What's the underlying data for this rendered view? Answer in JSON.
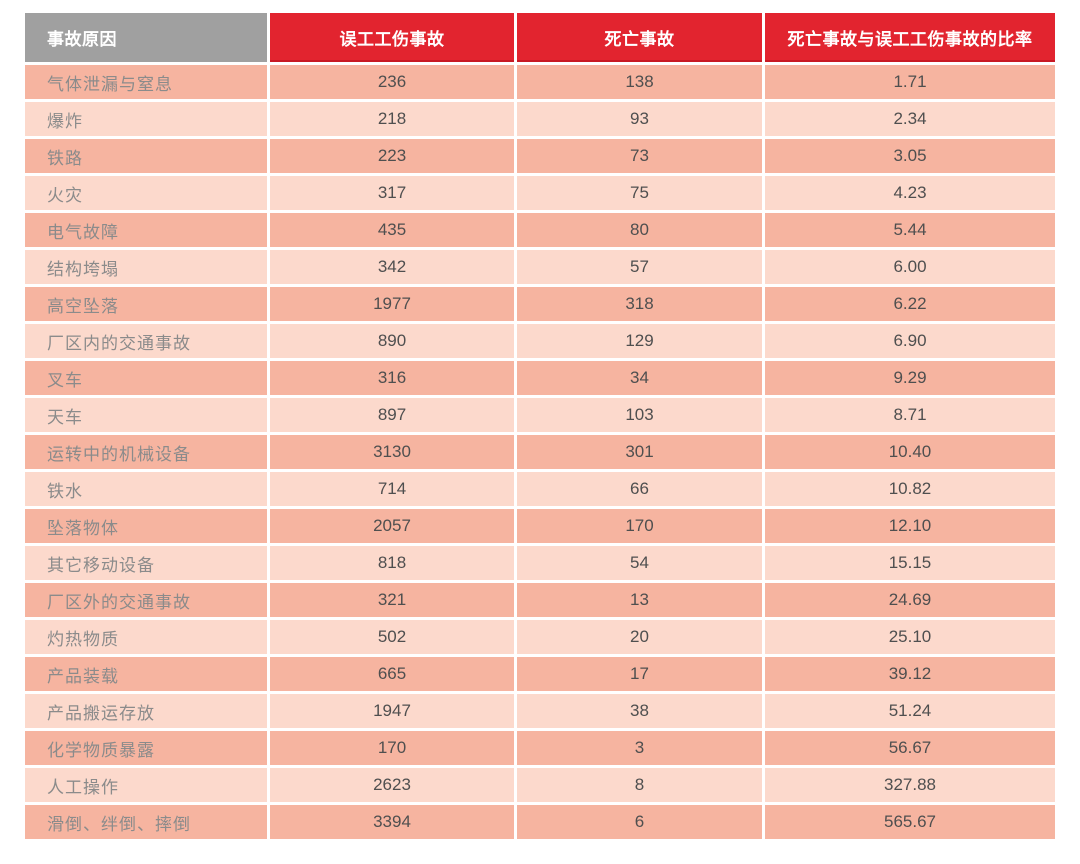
{
  "colors": {
    "header-gray": "#a0a0a0",
    "header-red": "#e2242f",
    "row-odd": "#f6b4a0",
    "row-even": "#fcd9cc",
    "label-text": "#8b8b8b",
    "value-text": "#4f4f4f",
    "header-text": "#ffffff",
    "page-background": "#ffffff"
  },
  "table": {
    "headers": [
      {
        "label": "事故原因"
      },
      {
        "label": "误工工伤事故"
      },
      {
        "label": "死亡事故"
      },
      {
        "label": "死亡事故与误工工伤事故的比率"
      }
    ],
    "rows": [
      [
        "气体泄漏与窒息",
        "236",
        "138",
        "1.71"
      ],
      [
        "爆炸",
        "218",
        "93",
        "2.34"
      ],
      [
        "铁路",
        "223",
        "73",
        "3.05"
      ],
      [
        "火灾",
        "317",
        "75",
        "4.23"
      ],
      [
        "电气故障",
        "435",
        "80",
        "5.44"
      ],
      [
        "结构垮塌",
        "342",
        "57",
        "6.00"
      ],
      [
        "高空坠落",
        "1977",
        "318",
        "6.22"
      ],
      [
        "厂区内的交通事故",
        "890",
        "129",
        "6.90"
      ],
      [
        "叉车",
        "316",
        "34",
        "9.29"
      ],
      [
        "天车",
        "897",
        "103",
        "8.71"
      ],
      [
        "运转中的机械设备",
        "3130",
        "301",
        "10.40"
      ],
      [
        "铁水",
        "714",
        "66",
        "10.82"
      ],
      [
        "坠落物体",
        "2057",
        "170",
        "12.10"
      ],
      [
        "其它移动设备",
        "818",
        "54",
        "15.15"
      ],
      [
        "厂区外的交通事故",
        "321",
        "13",
        "24.69"
      ],
      [
        "灼热物质",
        "502",
        "20",
        "25.10"
      ],
      [
        "产品装载",
        "665",
        "17",
        "39.12"
      ],
      [
        "产品搬运存放",
        "1947",
        "38",
        "51.24"
      ],
      [
        "化学物质暴露",
        "170",
        "3",
        "56.67"
      ],
      [
        "人工操作",
        "2623",
        "8",
        "327.88"
      ],
      [
        "滑倒、绊倒、摔倒",
        "3394",
        "6",
        "565.67"
      ]
    ]
  },
  "chart_data": {
    "type": "table",
    "columns": [
      "事故原因",
      "误工工伤事故",
      "死亡事故",
      "死亡事故与误工工伤事故的比率"
    ],
    "rows": [
      {
        "cause": "气体泄漏与窒息",
        "lost_time_injuries": 236,
        "fatalities": 138,
        "ratio": 1.71
      },
      {
        "cause": "爆炸",
        "lost_time_injuries": 218,
        "fatalities": 93,
        "ratio": 2.34
      },
      {
        "cause": "铁路",
        "lost_time_injuries": 223,
        "fatalities": 73,
        "ratio": 3.05
      },
      {
        "cause": "火灾",
        "lost_time_injuries": 317,
        "fatalities": 75,
        "ratio": 4.23
      },
      {
        "cause": "电气故障",
        "lost_time_injuries": 435,
        "fatalities": 80,
        "ratio": 5.44
      },
      {
        "cause": "结构垮塌",
        "lost_time_injuries": 342,
        "fatalities": 57,
        "ratio": 6.0
      },
      {
        "cause": "高空坠落",
        "lost_time_injuries": 1977,
        "fatalities": 318,
        "ratio": 6.22
      },
      {
        "cause": "厂区内的交通事故",
        "lost_time_injuries": 890,
        "fatalities": 129,
        "ratio": 6.9
      },
      {
        "cause": "叉车",
        "lost_time_injuries": 316,
        "fatalities": 34,
        "ratio": 9.29
      },
      {
        "cause": "天车",
        "lost_time_injuries": 897,
        "fatalities": 103,
        "ratio": 8.71
      },
      {
        "cause": "运转中的机械设备",
        "lost_time_injuries": 3130,
        "fatalities": 301,
        "ratio": 10.4
      },
      {
        "cause": "铁水",
        "lost_time_injuries": 714,
        "fatalities": 66,
        "ratio": 10.82
      },
      {
        "cause": "坠落物体",
        "lost_time_injuries": 2057,
        "fatalities": 170,
        "ratio": 12.1
      },
      {
        "cause": "其它移动设备",
        "lost_time_injuries": 818,
        "fatalities": 54,
        "ratio": 15.15
      },
      {
        "cause": "厂区外的交通事故",
        "lost_time_injuries": 321,
        "fatalities": 13,
        "ratio": 24.69
      },
      {
        "cause": "灼热物质",
        "lost_time_injuries": 502,
        "fatalities": 20,
        "ratio": 25.1
      },
      {
        "cause": "产品装载",
        "lost_time_injuries": 665,
        "fatalities": 17,
        "ratio": 39.12
      },
      {
        "cause": "产品搬运存放",
        "lost_time_injuries": 1947,
        "fatalities": 38,
        "ratio": 51.24
      },
      {
        "cause": "化学物质暴露",
        "lost_time_injuries": 170,
        "fatalities": 3,
        "ratio": 56.67
      },
      {
        "cause": "人工操作",
        "lost_time_injuries": 2623,
        "fatalities": 8,
        "ratio": 327.88
      },
      {
        "cause": "滑倒、绊倒、摔倒",
        "lost_time_injuries": 3394,
        "fatalities": 6,
        "ratio": 565.67
      }
    ]
  }
}
